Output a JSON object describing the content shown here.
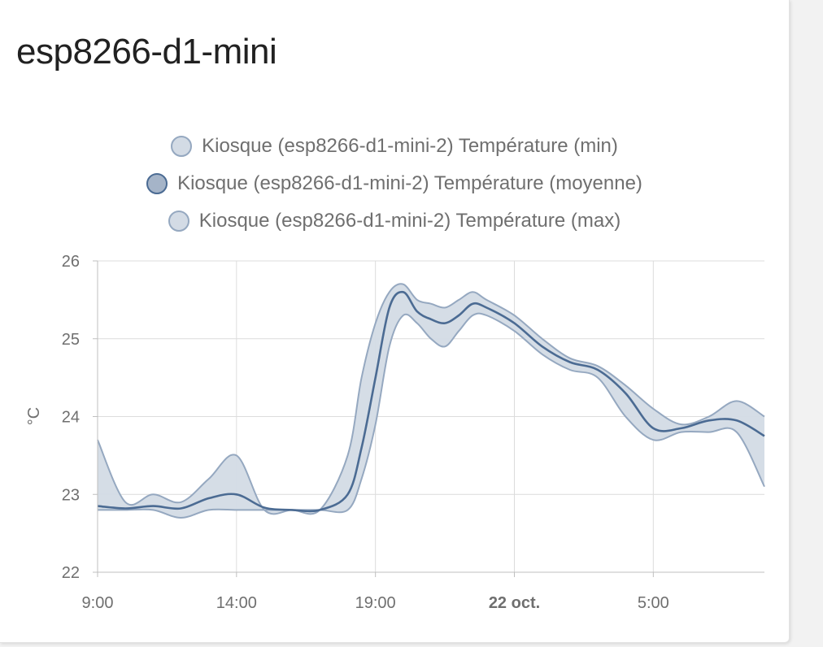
{
  "card": {
    "title": "esp8266-d1-mini"
  },
  "colors": {
    "band_fill": "#d3dbe5",
    "band_line": "#95a8c0",
    "mean_line": "#4b6b93",
    "mean_swatch_fill": "#a5b4c8",
    "grid": "#dcdcdc",
    "axis": "#bfbfbf"
  },
  "legend": [
    {
      "label": "Kiosque (esp8266-d1-mini-2) Température (min)"
    },
    {
      "label": "Kiosque (esp8266-d1-mini-2) Température (moyenne)"
    },
    {
      "label": "Kiosque (esp8266-d1-mini-2) Température (max)"
    }
  ],
  "chart_data": {
    "type": "area",
    "title": "",
    "xlabel": "",
    "ylabel": "°C",
    "x_unit": "hours",
    "xlim": [
      9,
      33
    ],
    "ylim": [
      22,
      26
    ],
    "y_ticks": [
      22,
      23,
      24,
      25,
      26
    ],
    "x_ticks": [
      {
        "value": 9,
        "label": "9:00",
        "bold": false
      },
      {
        "value": 14,
        "label": "14:00",
        "bold": false
      },
      {
        "value": 19,
        "label": "19:00",
        "bold": false
      },
      {
        "value": 24,
        "label": "22 oct.",
        "bold": true
      },
      {
        "value": 29,
        "label": "5:00",
        "bold": false
      }
    ],
    "grid": true,
    "legend_position": "top-center",
    "x": [
      9,
      10,
      11,
      12,
      13,
      14,
      15,
      16,
      17,
      18,
      18.5,
      19,
      19.5,
      20,
      20.5,
      21,
      21.5,
      22,
      22.5,
      23,
      24,
      25,
      26,
      27,
      28,
      29,
      30,
      31,
      32,
      33
    ],
    "series": [
      {
        "name": "Kiosque (esp8266-d1-mini-2) Température (min)",
        "values": [
          22.8,
          22.8,
          22.8,
          22.7,
          22.8,
          22.8,
          22.8,
          22.8,
          22.8,
          22.8,
          23.2,
          23.9,
          24.9,
          25.3,
          25.2,
          25.0,
          24.9,
          25.1,
          25.3,
          25.3,
          25.1,
          24.8,
          24.6,
          24.5,
          24.0,
          23.7,
          23.8,
          23.8,
          23.8,
          23.1
        ]
      },
      {
        "name": "Kiosque (esp8266-d1-mini-2) Température (moyenne)",
        "values": [
          22.85,
          22.82,
          22.85,
          22.82,
          22.95,
          23.0,
          22.83,
          22.8,
          22.8,
          23.0,
          23.6,
          24.5,
          25.4,
          25.6,
          25.35,
          25.25,
          25.2,
          25.3,
          25.45,
          25.4,
          25.2,
          24.9,
          24.7,
          24.6,
          24.3,
          23.85,
          23.85,
          23.95,
          23.95,
          23.75
        ]
      },
      {
        "name": "Kiosque (esp8266-d1-mini-2) Température (max)",
        "values": [
          23.7,
          22.9,
          23.0,
          22.9,
          23.2,
          23.5,
          22.8,
          22.8,
          22.8,
          23.5,
          24.5,
          25.2,
          25.6,
          25.7,
          25.5,
          25.45,
          25.4,
          25.5,
          25.6,
          25.5,
          25.3,
          25.0,
          24.75,
          24.65,
          24.4,
          24.1,
          23.9,
          24.0,
          24.2,
          24.0
        ]
      }
    ]
  }
}
